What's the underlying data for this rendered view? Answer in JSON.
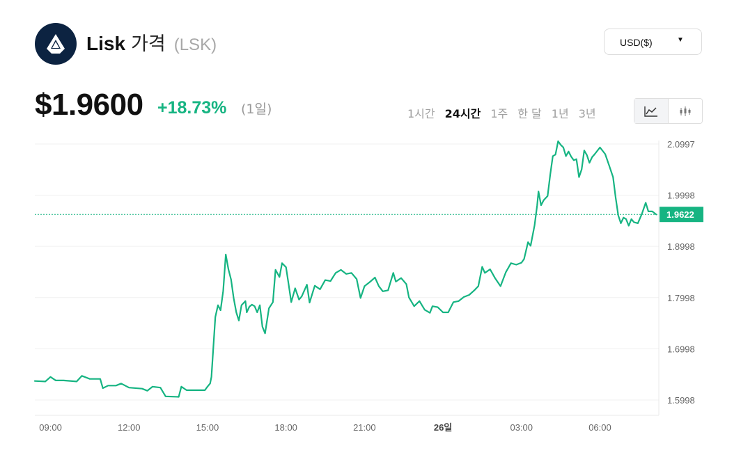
{
  "header": {
    "name": "Lisk",
    "word": "가격",
    "symbol": "(LSK)",
    "logo_icon": "lisk-logo-icon"
  },
  "currency_select": {
    "label": "USD($)"
  },
  "price": {
    "value": "$1.9600",
    "change": "+18.73%",
    "period": "(1일)"
  },
  "ranges": [
    {
      "label": "1시간",
      "active": false
    },
    {
      "label": "24시간",
      "active": true
    },
    {
      "label": "1주",
      "active": false
    },
    {
      "label": "한 달",
      "active": false
    },
    {
      "label": "1년",
      "active": false
    },
    {
      "label": "3년",
      "active": false
    }
  ],
  "chart_type_icons": [
    "line-chart-icon",
    "candlestick-chart-icon"
  ],
  "colors": {
    "line": "#16b482",
    "current_label_bg": "#16b482",
    "logo_bg": "#0c2341"
  },
  "chart_data": {
    "type": "line",
    "ylim": [
      1.57,
      2.12
    ],
    "y_ticks": [
      "1.5998",
      "1.6998",
      "1.7998",
      "1.8998",
      "1.9998",
      "2.0997"
    ],
    "x_ticks": [
      {
        "label": "09:00",
        "t": 0
      },
      {
        "label": "12:00",
        "t": 3
      },
      {
        "label": "15:00",
        "t": 6
      },
      {
        "label": "18:00",
        "t": 9
      },
      {
        "label": "21:00",
        "t": 12
      },
      {
        "label": "26일",
        "t": 15,
        "bold": true
      },
      {
        "label": "03:00",
        "t": 18
      },
      {
        "label": "06:00",
        "t": 21
      }
    ],
    "xlim": [
      -0.6,
      23.25
    ],
    "current_value": "1.9622",
    "current_y": 1.9622,
    "grid": true,
    "series": [
      {
        "points": [
          [
            -0.6,
            1.637
          ],
          [
            -0.2,
            1.636
          ],
          [
            0.0,
            1.645
          ],
          [
            0.2,
            1.638
          ],
          [
            0.5,
            1.638
          ],
          [
            1.0,
            1.636
          ],
          [
            1.2,
            1.647
          ],
          [
            1.5,
            1.641
          ],
          [
            1.9,
            1.641
          ],
          [
            2.0,
            1.623
          ],
          [
            2.2,
            1.628
          ],
          [
            2.5,
            1.628
          ],
          [
            2.7,
            1.632
          ],
          [
            3.0,
            1.624
          ],
          [
            3.5,
            1.622
          ],
          [
            3.7,
            1.618
          ],
          [
            3.9,
            1.626
          ],
          [
            4.2,
            1.624
          ],
          [
            4.4,
            1.607
          ],
          [
            4.9,
            1.606
          ],
          [
            5.0,
            1.626
          ],
          [
            5.2,
            1.619
          ],
          [
            5.9,
            1.619
          ],
          [
            6.0,
            1.626
          ],
          [
            6.1,
            1.632
          ],
          [
            6.15,
            1.645
          ],
          [
            6.2,
            1.685
          ],
          [
            6.3,
            1.762
          ],
          [
            6.4,
            1.785
          ],
          [
            6.5,
            1.775
          ],
          [
            6.6,
            1.813
          ],
          [
            6.7,
            1.884
          ],
          [
            6.8,
            1.855
          ],
          [
            6.9,
            1.835
          ],
          [
            7.0,
            1.799
          ],
          [
            7.1,
            1.771
          ],
          [
            7.2,
            1.755
          ],
          [
            7.3,
            1.785
          ],
          [
            7.45,
            1.793
          ],
          [
            7.5,
            1.771
          ],
          [
            7.6,
            1.782
          ],
          [
            7.7,
            1.786
          ],
          [
            7.8,
            1.783
          ],
          [
            7.9,
            1.771
          ],
          [
            8.0,
            1.785
          ],
          [
            8.1,
            1.743
          ],
          [
            8.2,
            1.73
          ],
          [
            8.35,
            1.779
          ],
          [
            8.5,
            1.791
          ],
          [
            8.6,
            1.854
          ],
          [
            8.75,
            1.84
          ],
          [
            8.85,
            1.867
          ],
          [
            9.0,
            1.859
          ],
          [
            9.1,
            1.826
          ],
          [
            9.2,
            1.791
          ],
          [
            9.35,
            1.818
          ],
          [
            9.5,
            1.796
          ],
          [
            9.6,
            1.802
          ],
          [
            9.8,
            1.825
          ],
          [
            9.9,
            1.79
          ],
          [
            10.1,
            1.823
          ],
          [
            10.3,
            1.816
          ],
          [
            10.5,
            1.834
          ],
          [
            10.7,
            1.832
          ],
          [
            10.9,
            1.848
          ],
          [
            11.1,
            1.854
          ],
          [
            11.3,
            1.846
          ],
          [
            11.5,
            1.848
          ],
          [
            11.7,
            1.836
          ],
          [
            11.85,
            1.799
          ],
          [
            12.0,
            1.822
          ],
          [
            12.2,
            1.83
          ],
          [
            12.4,
            1.839
          ],
          [
            12.55,
            1.822
          ],
          [
            12.7,
            1.812
          ],
          [
            12.9,
            1.814
          ],
          [
            13.1,
            1.848
          ],
          [
            13.2,
            1.831
          ],
          [
            13.4,
            1.838
          ],
          [
            13.6,
            1.826
          ],
          [
            13.7,
            1.8
          ],
          [
            13.9,
            1.783
          ],
          [
            14.1,
            1.793
          ],
          [
            14.3,
            1.776
          ],
          [
            14.5,
            1.77
          ],
          [
            14.6,
            1.783
          ],
          [
            14.8,
            1.781
          ],
          [
            15.0,
            1.771
          ],
          [
            15.2,
            1.771
          ],
          [
            15.4,
            1.791
          ],
          [
            15.6,
            1.793
          ],
          [
            15.8,
            1.801
          ],
          [
            16.0,
            1.805
          ],
          [
            16.2,
            1.814
          ],
          [
            16.35,
            1.822
          ],
          [
            16.5,
            1.86
          ],
          [
            16.6,
            1.848
          ],
          [
            16.8,
            1.855
          ],
          [
            17.0,
            1.837
          ],
          [
            17.2,
            1.822
          ],
          [
            17.4,
            1.849
          ],
          [
            17.6,
            1.867
          ],
          [
            17.8,
            1.864
          ],
          [
            18.0,
            1.868
          ],
          [
            18.1,
            1.875
          ],
          [
            18.25,
            1.908
          ],
          [
            18.35,
            1.901
          ],
          [
            18.5,
            1.941
          ],
          [
            18.6,
            1.98
          ],
          [
            18.65,
            2.007
          ],
          [
            18.75,
            1.98
          ],
          [
            18.85,
            1.99
          ],
          [
            19.0,
            1.998
          ],
          [
            19.1,
            2.04
          ],
          [
            19.2,
            2.076
          ],
          [
            19.3,
            2.079
          ],
          [
            19.4,
            2.105
          ],
          [
            19.5,
            2.098
          ],
          [
            19.6,
            2.093
          ],
          [
            19.7,
            2.076
          ],
          [
            19.8,
            2.085
          ],
          [
            19.9,
            2.075
          ],
          [
            20.0,
            2.068
          ],
          [
            20.1,
            2.07
          ],
          [
            20.2,
            2.035
          ],
          [
            20.3,
            2.05
          ],
          [
            20.4,
            2.087
          ],
          [
            20.5,
            2.078
          ],
          [
            20.6,
            2.063
          ],
          [
            20.7,
            2.074
          ],
          [
            20.8,
            2.08
          ],
          [
            21.0,
            2.093
          ],
          [
            21.2,
            2.08
          ],
          [
            21.35,
            2.058
          ],
          [
            21.5,
            2.035
          ],
          [
            21.6,
            1.995
          ],
          [
            21.7,
            1.96
          ],
          [
            21.8,
            1.945
          ],
          [
            21.9,
            1.956
          ],
          [
            22.0,
            1.953
          ],
          [
            22.1,
            1.94
          ],
          [
            22.2,
            1.953
          ],
          [
            22.3,
            1.947
          ],
          [
            22.45,
            1.945
          ],
          [
            22.6,
            1.963
          ],
          [
            22.75,
            1.985
          ],
          [
            22.85,
            1.968
          ],
          [
            23.0,
            1.968
          ],
          [
            23.15,
            1.962
          ]
        ]
      }
    ]
  }
}
